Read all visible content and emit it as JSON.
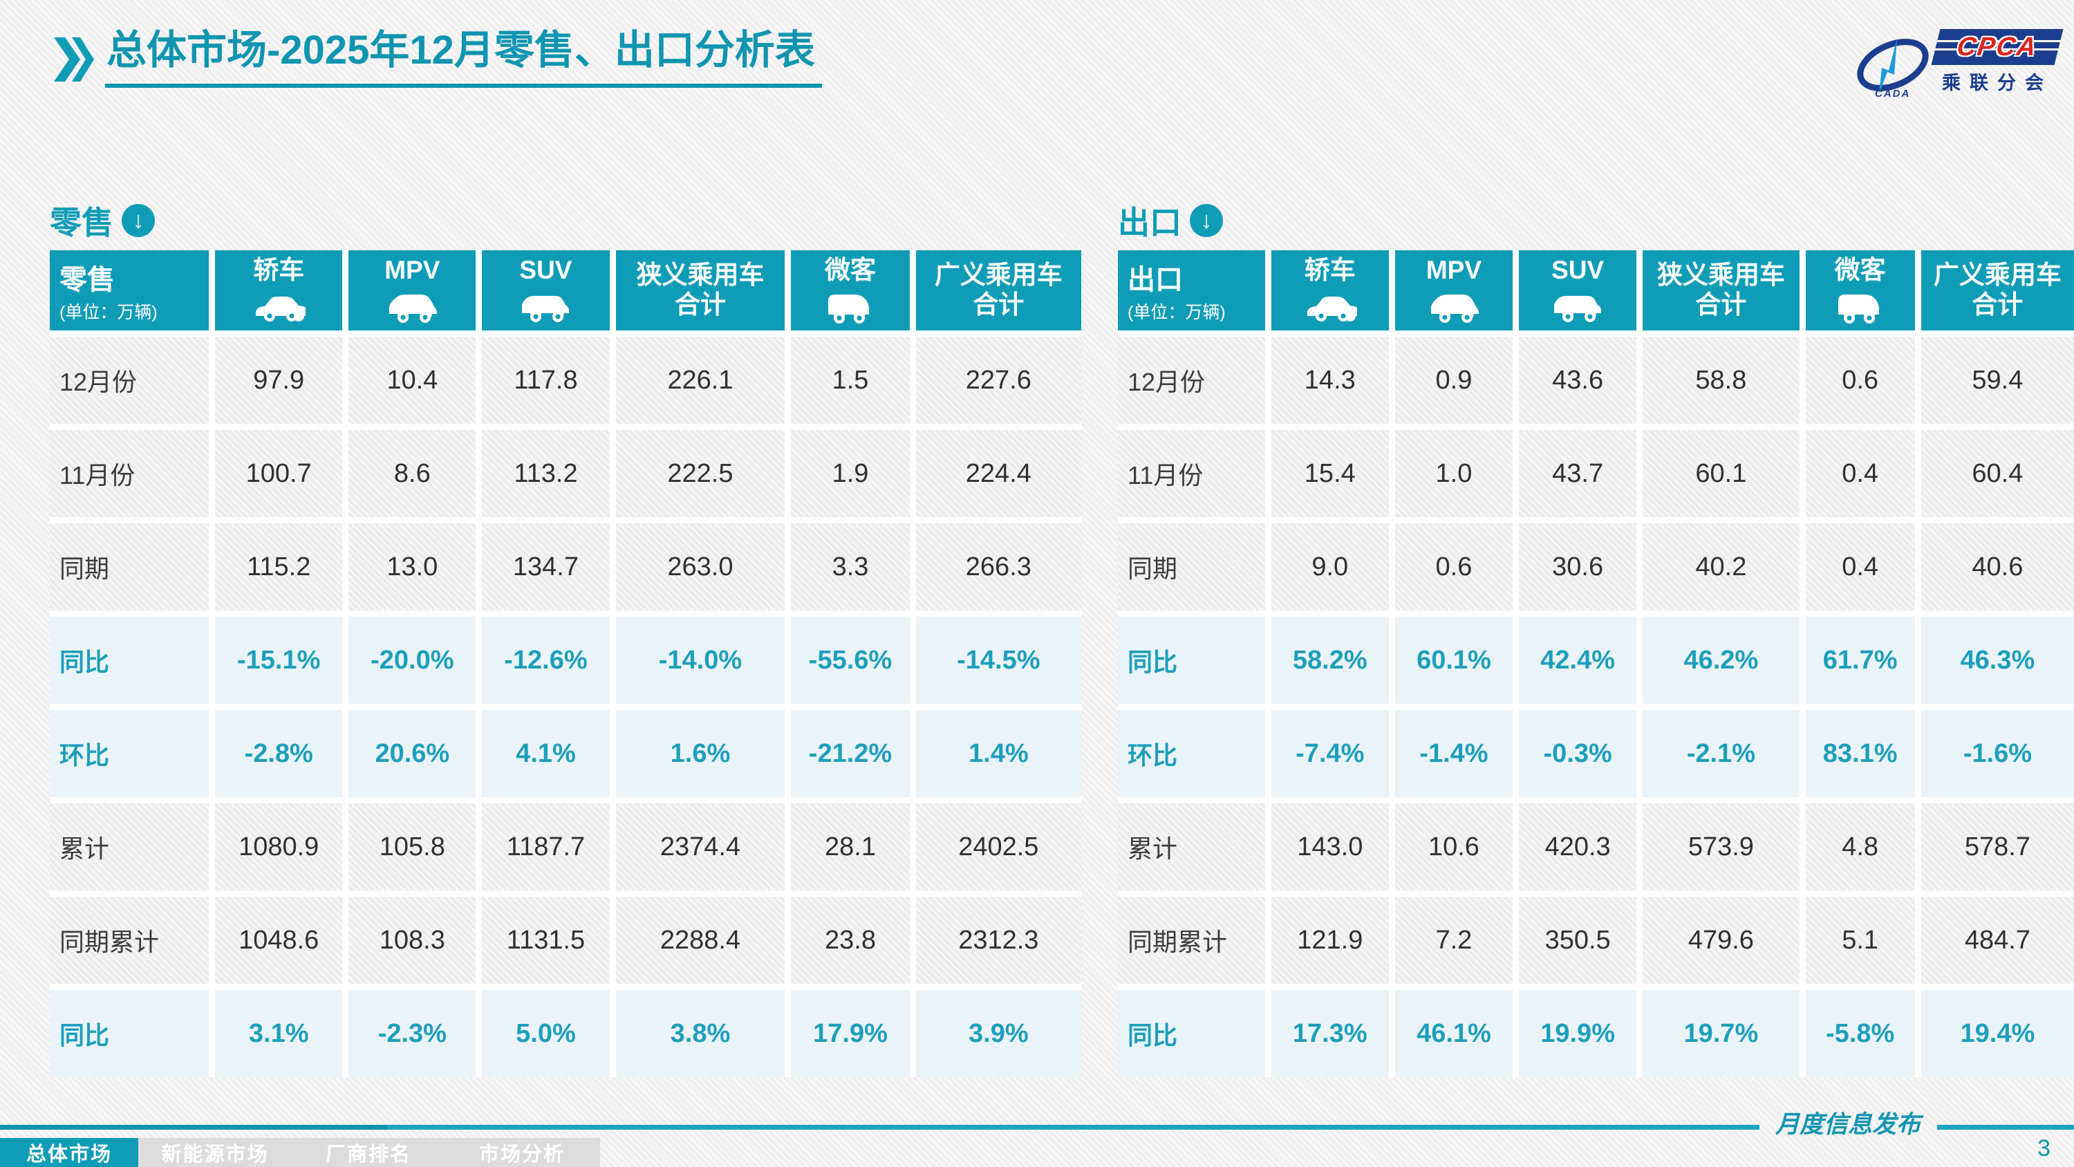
{
  "header": {
    "title_bold": "总体市场",
    "title_rest": "-2025年12月零售、出口分析表",
    "logo": {
      "cpca": "CPCA",
      "cada": "CADA",
      "subtitle": "乘联分会"
    }
  },
  "tables": {
    "retail": {
      "section_title": "零售",
      "corner_title": "零售",
      "unit": "(单位：万辆)",
      "columns": [
        {
          "lines": [
            "轿车"
          ],
          "icon": "sedan-icon"
        },
        {
          "lines": [
            "MPV"
          ],
          "icon": "mpv-icon"
        },
        {
          "lines": [
            "SUV"
          ],
          "icon": "suv-icon"
        },
        {
          "lines": [
            "狭义乘用车",
            "合计"
          ],
          "icon": null
        },
        {
          "lines": [
            "微客"
          ],
          "icon": "microvan-icon"
        },
        {
          "lines": [
            "广义乘用车",
            "合计"
          ],
          "icon": null
        }
      ],
      "rows": [
        {
          "label": "12月份",
          "highlight": false,
          "values": [
            "97.9",
            "10.4",
            "117.8",
            "226.1",
            "1.5",
            "227.6"
          ]
        },
        {
          "label": "11月份",
          "highlight": false,
          "values": [
            "100.7",
            "8.6",
            "113.2",
            "222.5",
            "1.9",
            "224.4"
          ]
        },
        {
          "label": "同期",
          "highlight": false,
          "values": [
            "115.2",
            "13.0",
            "134.7",
            "263.0",
            "3.3",
            "266.3"
          ]
        },
        {
          "label": "同比",
          "highlight": true,
          "values": [
            "-15.1%",
            "-20.0%",
            "-12.6%",
            "-14.0%",
            "-55.6%",
            "-14.5%"
          ]
        },
        {
          "label": "环比",
          "highlight": true,
          "values": [
            "-2.8%",
            "20.6%",
            "4.1%",
            "1.6%",
            "-21.2%",
            "1.4%"
          ]
        },
        {
          "label": "累计",
          "highlight": false,
          "values": [
            "1080.9",
            "105.8",
            "1187.7",
            "2374.4",
            "28.1",
            "2402.5"
          ]
        },
        {
          "label": "同期累计",
          "highlight": false,
          "values": [
            "1048.6",
            "108.3",
            "1131.5",
            "2288.4",
            "23.8",
            "2312.3"
          ]
        },
        {
          "label": "同比",
          "highlight": true,
          "values": [
            "3.1%",
            "-2.3%",
            "5.0%",
            "3.8%",
            "17.9%",
            "3.9%"
          ]
        }
      ]
    },
    "export": {
      "section_title": "出口",
      "corner_title": "出口",
      "unit": "(单位：万辆)",
      "columns": [
        {
          "lines": [
            "轿车"
          ],
          "icon": "sedan-icon"
        },
        {
          "lines": [
            "MPV"
          ],
          "icon": "mpv-icon"
        },
        {
          "lines": [
            "SUV"
          ],
          "icon": "suv-icon"
        },
        {
          "lines": [
            "狭义乘用车",
            "合计"
          ],
          "icon": null
        },
        {
          "lines": [
            "微客"
          ],
          "icon": "microvan-icon"
        },
        {
          "lines": [
            "广义乘用车",
            "合计"
          ],
          "icon": null
        }
      ],
      "rows": [
        {
          "label": "12月份",
          "highlight": false,
          "values": [
            "14.3",
            "0.9",
            "43.6",
            "58.8",
            "0.6",
            "59.4"
          ]
        },
        {
          "label": "11月份",
          "highlight": false,
          "values": [
            "15.4",
            "1.0",
            "43.7",
            "60.1",
            "0.4",
            "60.4"
          ]
        },
        {
          "label": "同期",
          "highlight": false,
          "values": [
            "9.0",
            "0.6",
            "30.6",
            "40.2",
            "0.4",
            "40.6"
          ]
        },
        {
          "label": "同比",
          "highlight": true,
          "values": [
            "58.2%",
            "60.1%",
            "42.4%",
            "46.2%",
            "61.7%",
            "46.3%"
          ]
        },
        {
          "label": "环比",
          "highlight": true,
          "values": [
            "-7.4%",
            "-1.4%",
            "-0.3%",
            "-2.1%",
            "83.1%",
            "-1.6%"
          ]
        },
        {
          "label": "累计",
          "highlight": false,
          "values": [
            "143.0",
            "10.6",
            "420.3",
            "573.9",
            "4.8",
            "578.7"
          ]
        },
        {
          "label": "同期累计",
          "highlight": false,
          "values": [
            "121.9",
            "7.2",
            "350.5",
            "479.6",
            "5.1",
            "484.7"
          ]
        },
        {
          "label": "同比",
          "highlight": true,
          "values": [
            "17.3%",
            "46.1%",
            "19.9%",
            "19.7%",
            "-5.8%",
            "19.4%"
          ]
        }
      ]
    }
  },
  "footer": {
    "tabs": [
      {
        "label": "总体市场",
        "active": true
      },
      {
        "label": "新能源市场",
        "active": false
      },
      {
        "label": "厂商排名",
        "active": false
      },
      {
        "label": "市场分析",
        "active": false
      }
    ],
    "publication_note": "月度信息发布",
    "page_number": "3"
  },
  "colors": {
    "accent_teal": "#0f9cb6",
    "highlight_row_bg": "#eaf3f8",
    "percent_text": "#1d9fbb",
    "logo_navy": "#1c3e8f",
    "logo_red": "#d9251d"
  }
}
